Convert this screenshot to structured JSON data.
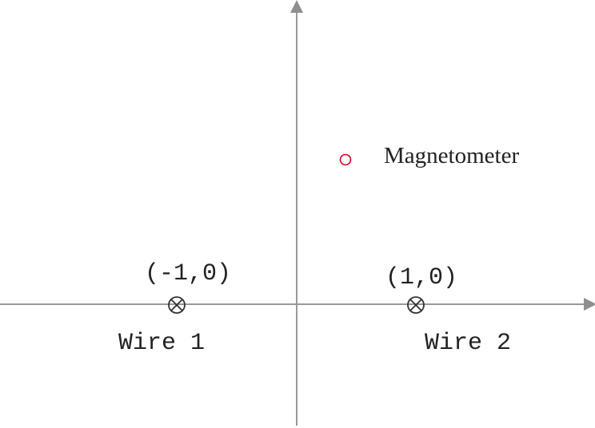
{
  "diagram": {
    "wire1": {
      "coordinate_label": "(-1,0)",
      "name_label": "Wire 1",
      "symbol": "into-page-cross-circle"
    },
    "wire2": {
      "coordinate_label": "(1,0)",
      "name_label": "Wire 2",
      "symbol": "into-page-cross-circle"
    },
    "magnetometer": {
      "label": "Magnetometer",
      "marker_color": "#d9001b"
    },
    "colors": {
      "axis": "#999999",
      "text": "#222222"
    }
  }
}
